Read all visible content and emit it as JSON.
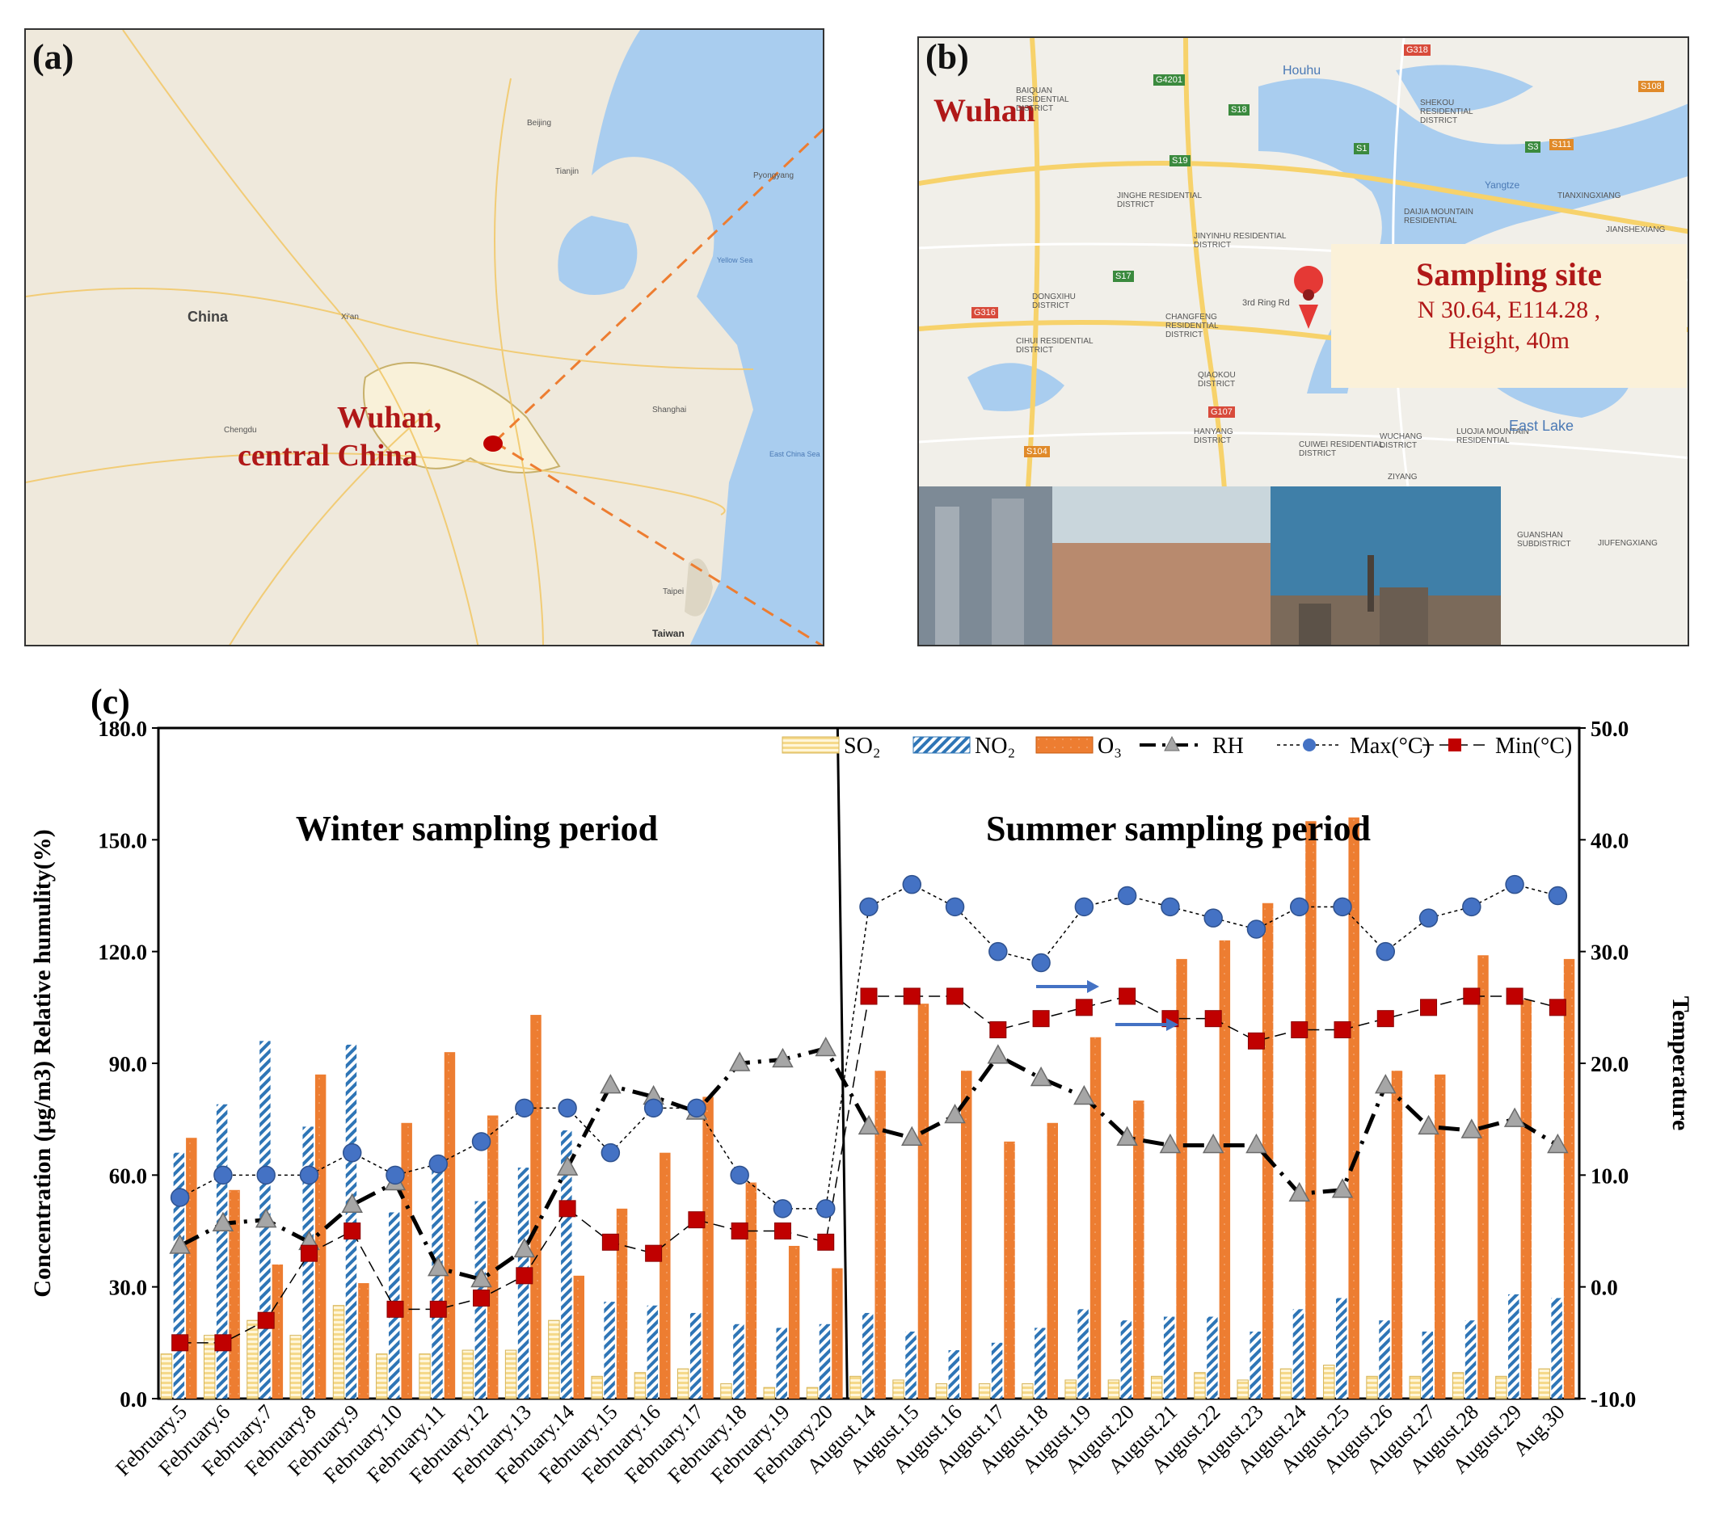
{
  "panel_a": {
    "label": "(a)",
    "country_label": "China",
    "highlight_label_line1": "Wuhan,",
    "highlight_label_line2": "central China",
    "city_labels": [
      "Beijing",
      "Tianjin",
      "Xi'an",
      "Chengdu",
      "Shanghai",
      "Taipei",
      "Pyongyang",
      "Taiwan"
    ],
    "sea_labels": [
      "Yellow Sea",
      "East China Sea"
    ]
  },
  "panel_b": {
    "label": "(b)",
    "city_title": "Wuhan",
    "site_title": "Sampling site",
    "site_coords": "N 30.64, E114.28 ,",
    "site_height": "Height, 40m",
    "district_labels": [
      "BAIQUAN RESIDENTIAL DISTRICT",
      "JINGHE RESIDENTIAL DISTRICT",
      "JINYINHU RESIDENTIAL DISTRICT",
      "DONGXIHU DISTRICT",
      "CHANGFENG RESIDENTIAL DISTRICT",
      "CIHUI RESIDENTIAL DISTRICT",
      "QIAOKOU DISTRICT",
      "HANYANG DISTRICT",
      "CUIWEI RESIDENTIAL DISTRICT",
      "WUCHANG DISTRICT",
      "LUOJIA MOUNTAIN RESIDENTIAL",
      "SHEKOU RESIDENTIAL DISTRICT",
      "DAIJIA MOUNTAIN RESIDENTIAL",
      "TIANXINGXIANG",
      "JIANSHEXIANG",
      "GUANSHAN SUBDISTRICT",
      "JIUFENGXIANG",
      "East Lake",
      "Houhu",
      "Yangtze",
      "3rd Ring Rd",
      "ZIYANG"
    ],
    "road_labels": [
      "G4201",
      "G318",
      "S18",
      "S19",
      "S1",
      "S3",
      "S111",
      "S108",
      "S17",
      "G316",
      "G107",
      "S104"
    ]
  },
  "chart_data": {
    "type": "bar",
    "panel_label": "(c)",
    "title": "",
    "annotations": [
      "Winter sampling period",
      "Summer sampling period"
    ],
    "ylabel_left": "Concentration (μg/m3)  Relative humulity(%)",
    "ylabel_right": "Temperature",
    "xlabel": "",
    "ylim_left": [
      0,
      180
    ],
    "ylim_right": [
      -10,
      50
    ],
    "yticks_left": [
      "0.0",
      "30.0",
      "60.0",
      "90.0",
      "120.0",
      "150.0",
      "180.0"
    ],
    "yticks_right": [
      "-10.0",
      "0.0",
      "10.0",
      "20.0",
      "30.0",
      "40.0",
      "50.0"
    ],
    "categories": [
      "February.5",
      "February.6",
      "February.7",
      "February.8",
      "February.9",
      "February.10",
      "February.11",
      "February.12",
      "February.13",
      "February.14",
      "February.15",
      "February.16",
      "February.17",
      "February.18",
      "February.19",
      "February.20",
      "August.14",
      "August.15",
      "August.16",
      "August.17",
      "August.18",
      "August.19",
      "August.20",
      "August.21",
      "August.22",
      "August.23",
      "August.24",
      "August.25",
      "August.26",
      "August.27",
      "August.28",
      "August.29",
      "Aug.30"
    ],
    "legend": [
      "SO₂",
      "NO₂",
      "O₃",
      "RH",
      "Max(°C)",
      "Min(°C)"
    ],
    "legend_position": "top-right",
    "series": [
      {
        "name": "SO₂",
        "kind": "bar",
        "axis": "left",
        "color": "#f5d98a",
        "values": [
          12,
          17,
          21,
          17,
          25,
          12,
          12,
          13,
          13,
          21,
          6,
          7,
          8,
          4,
          3,
          3,
          6,
          5,
          4,
          4,
          4,
          5,
          5,
          6,
          7,
          5,
          8,
          9,
          6,
          6,
          7,
          6,
          8
        ]
      },
      {
        "name": "NO₂",
        "kind": "bar",
        "axis": "left",
        "color": "#2e75b6",
        "values": [
          66,
          79,
          96,
          73,
          95,
          50,
          62,
          53,
          62,
          72,
          26,
          25,
          23,
          20,
          19,
          20,
          23,
          18,
          13,
          15,
          19,
          24,
          21,
          22,
          22,
          18,
          24,
          27,
          21,
          18,
          21,
          28,
          27
        ]
      },
      {
        "name": "O₃",
        "kind": "bar",
        "axis": "left",
        "color": "#ed7d31",
        "values": [
          70,
          56,
          36,
          87,
          31,
          74,
          93,
          76,
          103,
          33,
          51,
          66,
          81,
          58,
          41,
          35,
          88,
          106,
          88,
          69,
          74,
          97,
          80,
          118,
          123,
          133,
          155,
          156,
          88,
          87,
          119,
          107,
          118
        ]
      },
      {
        "name": "RH",
        "kind": "line",
        "axis": "left",
        "color": "#000000",
        "values": [
          41,
          47,
          48,
          42,
          52,
          58,
          35,
          32,
          40,
          62,
          84,
          81,
          77,
          90,
          91,
          94,
          73,
          70,
          76,
          92,
          86,
          81,
          70,
          68,
          68,
          68,
          55,
          56,
          84,
          73,
          72,
          75,
          68
        ]
      },
      {
        "name": "Max(°C)",
        "kind": "line",
        "axis": "right",
        "color": "#4472c4",
        "values": [
          8,
          10,
          10,
          10,
          12,
          10,
          11,
          13,
          16,
          16,
          12,
          16,
          16,
          10,
          7,
          7,
          34,
          36,
          34,
          30,
          29,
          34,
          35,
          34,
          33,
          32,
          34,
          34,
          30,
          33,
          34,
          36,
          35
        ]
      },
      {
        "name": "Min(°C)",
        "kind": "line",
        "axis": "right",
        "color": "#c00000",
        "values": [
          -5,
          -5,
          -3,
          3,
          5,
          -2,
          -2,
          -1,
          1,
          7,
          4,
          3,
          6,
          5,
          5,
          4,
          26,
          26,
          26,
          23,
          24,
          25,
          26,
          24,
          24,
          22,
          23,
          23,
          24,
          25,
          26,
          26,
          25
        ]
      }
    ]
  }
}
